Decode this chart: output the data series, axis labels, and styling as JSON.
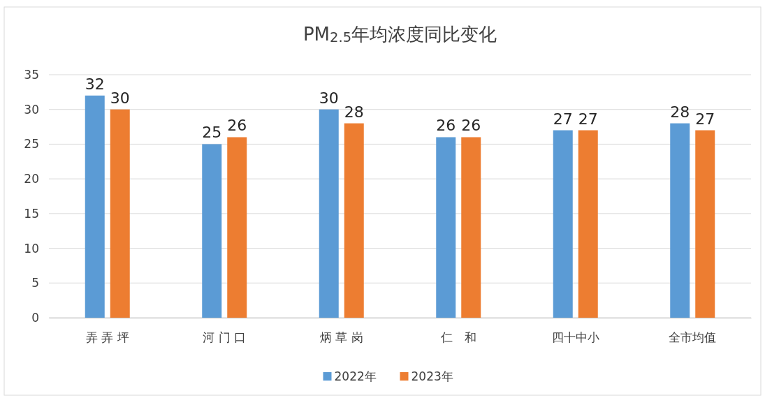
{
  "chart_data": {
    "type": "bar",
    "title": "PM$_{2.5}$年均浓度同比变化",
    "categories": [
      "弄 弄 坪",
      "河 门 口",
      "炳 草 岗",
      "仁　和",
      "四十中小",
      "全市均值"
    ],
    "series": [
      {
        "name": "2022年",
        "color": "#5b9bd5",
        "values": [
          32,
          25,
          30,
          26,
          27,
          28
        ]
      },
      {
        "name": "2023年",
        "color": "#ed7d31",
        "values": [
          30,
          26,
          28,
          26,
          27,
          27
        ]
      }
    ],
    "ylim": [
      0,
      35
    ],
    "yticks": [
      0,
      5,
      10,
      15,
      20,
      25,
      30,
      35
    ],
    "grid": "y",
    "legend": "bottom",
    "data_labels": true
  }
}
